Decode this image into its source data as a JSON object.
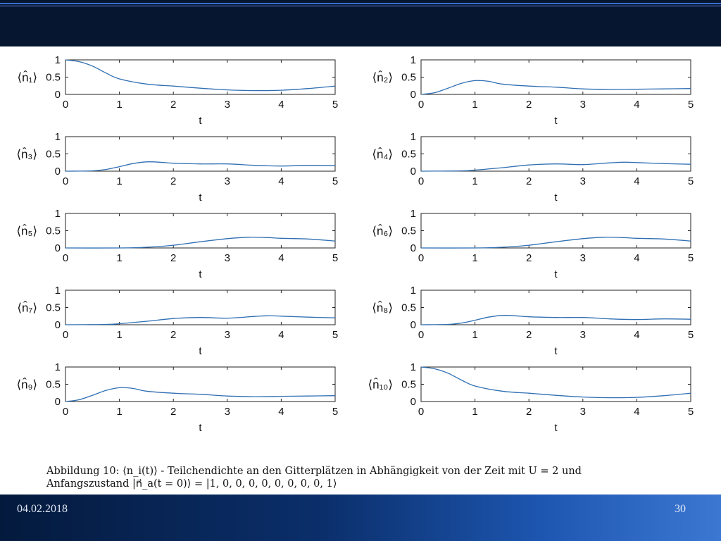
{
  "footer": {
    "date": "04.02.2018",
    "page_number": "30"
  },
  "caption": {
    "line1": "Abbildung 10: ⟨n_i(t)⟩ - Teilchendichte an den Gitterplätzen in Abhängigkeit von der Zeit mit U = 2 und",
    "line2": "Anfangszustand |n⃗_a(t = 0)⟩ = |1, 0, 0, 0, 0, 0, 0, 0, 0, 1⟩"
  },
  "colors": {
    "line": "#2f6fb3",
    "header": "#061530",
    "footer_start": "#041a3d",
    "footer_end": "#3c78d2"
  },
  "chart_data": [
    {
      "type": "line",
      "ylabel": "⟨n̂₁⟩",
      "xlabel": "t",
      "xlim": [
        0,
        5
      ],
      "ylim": [
        0,
        1
      ],
      "xticks": [
        "0",
        "1",
        "2",
        "3",
        "4",
        "5"
      ],
      "yticks": [
        "0",
        "0.5",
        "1"
      ],
      "series": [
        {
          "x": [
            0,
            0.25,
            0.5,
            0.75,
            1,
            1.5,
            2,
            2.5,
            3,
            3.5,
            4,
            4.5,
            5
          ],
          "values": [
            1.0,
            0.95,
            0.82,
            0.62,
            0.45,
            0.3,
            0.24,
            0.18,
            0.13,
            0.11,
            0.12,
            0.17,
            0.24
          ]
        }
      ]
    },
    {
      "type": "line",
      "ylabel": "⟨n̂₂⟩",
      "xlabel": "t",
      "xlim": [
        0,
        5
      ],
      "ylim": [
        0,
        1
      ],
      "xticks": [
        "0",
        "1",
        "2",
        "3",
        "4",
        "5"
      ],
      "yticks": [
        "0",
        "0.5",
        "1"
      ],
      "series": [
        {
          "x": [
            0,
            0.25,
            0.5,
            0.75,
            1,
            1.25,
            1.5,
            2,
            2.5,
            3,
            3.5,
            4,
            4.5,
            5
          ],
          "values": [
            0.0,
            0.05,
            0.18,
            0.32,
            0.4,
            0.38,
            0.3,
            0.24,
            0.21,
            0.16,
            0.14,
            0.15,
            0.16,
            0.17
          ]
        }
      ]
    },
    {
      "type": "line",
      "ylabel": "⟨n̂₃⟩",
      "xlabel": "t",
      "xlim": [
        0,
        5
      ],
      "ylim": [
        0,
        1
      ],
      "xticks": [
        "0",
        "1",
        "2",
        "3",
        "4",
        "5"
      ],
      "yticks": [
        "0",
        "0.5",
        "1"
      ],
      "series": [
        {
          "x": [
            0,
            0.5,
            0.75,
            1,
            1.25,
            1.5,
            1.75,
            2,
            2.5,
            3,
            3.5,
            4,
            4.5,
            5
          ],
          "values": [
            0.0,
            0.01,
            0.05,
            0.13,
            0.22,
            0.27,
            0.26,
            0.23,
            0.21,
            0.21,
            0.17,
            0.15,
            0.17,
            0.16
          ]
        }
      ]
    },
    {
      "type": "line",
      "ylabel": "⟨n̂₄⟩",
      "xlabel": "t",
      "xlim": [
        0,
        5
      ],
      "ylim": [
        0,
        1
      ],
      "xticks": [
        "0",
        "1",
        "2",
        "3",
        "4",
        "5"
      ],
      "yticks": [
        "0",
        "0.5",
        "1"
      ],
      "series": [
        {
          "x": [
            0,
            0.75,
            1,
            1.5,
            2,
            2.5,
            3,
            3.5,
            3.75,
            4,
            4.5,
            5
          ],
          "values": [
            0.0,
            0.01,
            0.03,
            0.1,
            0.18,
            0.21,
            0.19,
            0.24,
            0.26,
            0.25,
            0.22,
            0.2
          ]
        }
      ]
    },
    {
      "type": "line",
      "ylabel": "⟨n̂₅⟩",
      "xlabel": "t",
      "xlim": [
        0,
        5
      ],
      "ylim": [
        0,
        1
      ],
      "xticks": [
        "0",
        "1",
        "2",
        "3",
        "4",
        "5"
      ],
      "yticks": [
        "0",
        "0.5",
        "1"
      ],
      "series": [
        {
          "x": [
            0,
            1,
            1.5,
            2,
            2.5,
            3,
            3.4,
            3.75,
            4,
            4.5,
            5
          ],
          "values": [
            0.0,
            0.0,
            0.02,
            0.08,
            0.18,
            0.27,
            0.31,
            0.3,
            0.28,
            0.26,
            0.2
          ]
        }
      ]
    },
    {
      "type": "line",
      "ylabel": "⟨n̂₆⟩",
      "xlabel": "t",
      "xlim": [
        0,
        5
      ],
      "ylim": [
        0,
        1
      ],
      "xticks": [
        "0",
        "1",
        "2",
        "3",
        "4",
        "5"
      ],
      "yticks": [
        "0",
        "0.5",
        "1"
      ],
      "series": [
        {
          "x": [
            0,
            1,
            1.5,
            2,
            2.5,
            3,
            3.4,
            3.75,
            4,
            4.5,
            5
          ],
          "values": [
            0.0,
            0.0,
            0.02,
            0.08,
            0.18,
            0.27,
            0.31,
            0.3,
            0.28,
            0.26,
            0.2
          ]
        }
      ]
    },
    {
      "type": "line",
      "ylabel": "⟨n̂₇⟩",
      "xlabel": "t",
      "xlim": [
        0,
        5
      ],
      "ylim": [
        0,
        1
      ],
      "xticks": [
        "0",
        "1",
        "2",
        "3",
        "4",
        "5"
      ],
      "yticks": [
        "0",
        "0.5",
        "1"
      ],
      "series": [
        {
          "x": [
            0,
            0.75,
            1,
            1.5,
            2,
            2.5,
            3,
            3.5,
            3.75,
            4,
            4.5,
            5
          ],
          "values": [
            0.0,
            0.01,
            0.03,
            0.1,
            0.18,
            0.21,
            0.19,
            0.24,
            0.26,
            0.25,
            0.22,
            0.2
          ]
        }
      ]
    },
    {
      "type": "line",
      "ylabel": "⟨n̂₈⟩",
      "xlabel": "t",
      "xlim": [
        0,
        5
      ],
      "ylim": [
        0,
        1
      ],
      "xticks": [
        "0",
        "1",
        "2",
        "3",
        "4",
        "5"
      ],
      "yticks": [
        "0",
        "0.5",
        "1"
      ],
      "series": [
        {
          "x": [
            0,
            0.5,
            0.75,
            1,
            1.25,
            1.5,
            1.75,
            2,
            2.5,
            3,
            3.5,
            4,
            4.5,
            5
          ],
          "values": [
            0.0,
            0.01,
            0.05,
            0.13,
            0.22,
            0.27,
            0.26,
            0.23,
            0.21,
            0.21,
            0.17,
            0.15,
            0.17,
            0.16
          ]
        }
      ]
    },
    {
      "type": "line",
      "ylabel": "⟨n̂₉⟩",
      "xlabel": "t",
      "xlim": [
        0,
        5
      ],
      "ylim": [
        0,
        1
      ],
      "xticks": [
        "0",
        "1",
        "2",
        "3",
        "4",
        "5"
      ],
      "yticks": [
        "0",
        "0.5",
        "1"
      ],
      "series": [
        {
          "x": [
            0,
            0.25,
            0.5,
            0.75,
            1,
            1.25,
            1.5,
            2,
            2.5,
            3,
            3.5,
            4,
            4.5,
            5
          ],
          "values": [
            0.0,
            0.05,
            0.18,
            0.32,
            0.4,
            0.38,
            0.3,
            0.24,
            0.21,
            0.16,
            0.14,
            0.15,
            0.16,
            0.17
          ]
        }
      ]
    },
    {
      "type": "line",
      "ylabel": "⟨n̂₁₀⟩",
      "xlabel": "t",
      "xlim": [
        0,
        5
      ],
      "ylim": [
        0,
        1
      ],
      "xticks": [
        "0",
        "1",
        "2",
        "3",
        "4",
        "5"
      ],
      "yticks": [
        "0",
        "0.5",
        "1"
      ],
      "series": [
        {
          "x": [
            0,
            0.25,
            0.5,
            0.75,
            1,
            1.5,
            2,
            2.5,
            3,
            3.5,
            4,
            4.5,
            5
          ],
          "values": [
            1.0,
            0.95,
            0.82,
            0.62,
            0.45,
            0.3,
            0.24,
            0.18,
            0.13,
            0.11,
            0.12,
            0.17,
            0.24
          ]
        }
      ]
    }
  ]
}
